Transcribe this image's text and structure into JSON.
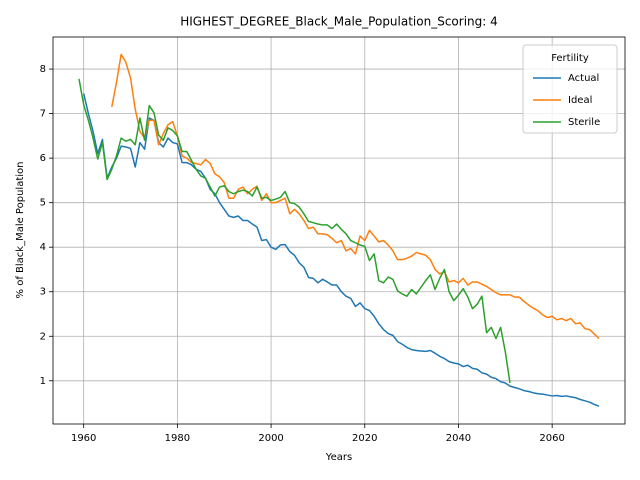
{
  "chart_data": {
    "type": "line",
    "title": "HIGHEST_DEGREE_Black_Male_Population_Scoring: 4",
    "x_label": "Years",
    "y_label": "% of Black_Male Population",
    "legend_title": "Fertility",
    "legend": "upper right",
    "grid": true,
    "x": [
      1959,
      1960,
      1961,
      1962,
      1963,
      1964,
      1965,
      1966,
      1967,
      1968,
      1969,
      1970,
      1971,
      1972,
      1973,
      1974,
      1975,
      1976,
      1977,
      1978,
      1979,
      1980,
      1981,
      1982,
      1983,
      1984,
      1985,
      1986,
      1987,
      1988,
      1989,
      1990,
      1991,
      1992,
      1993,
      1994,
      1995,
      1996,
      1997,
      1998,
      1999,
      2000,
      2001,
      2002,
      2003,
      2004,
      2005,
      2006,
      2007,
      2008,
      2009,
      2010,
      2011,
      2012,
      2013,
      2014,
      2015,
      2016,
      2017,
      2018,
      2019,
      2020,
      2021,
      2022,
      2023,
      2024,
      2025,
      2026,
      2027,
      2028,
      2029,
      2030,
      2031,
      2032,
      2033,
      2034,
      2035,
      2036,
      2037,
      2038,
      2039,
      2040,
      2041,
      2042,
      2043,
      2044,
      2045,
      2046,
      2047,
      2048,
      2049,
      2050,
      2051,
      2052,
      2053,
      2054,
      2055,
      2056,
      2057,
      2058,
      2059,
      2060,
      2061,
      2062,
      2063,
      2064,
      2065,
      2066,
      2067,
      2068,
      2069,
      2070
    ],
    "series": [
      {
        "name": "Actual",
        "color": "#1f77b4",
        "values": [
          null,
          7.45,
          7.0,
          6.6,
          6.1,
          6.42,
          5.55,
          5.8,
          6.0,
          6.27,
          6.25,
          6.22,
          5.8,
          6.35,
          6.2,
          6.9,
          6.85,
          6.35,
          6.25,
          6.45,
          6.35,
          6.32,
          5.9,
          5.9,
          5.85,
          5.75,
          5.7,
          5.55,
          5.3,
          5.2,
          5.0,
          4.85,
          4.7,
          4.67,
          4.7,
          4.6,
          4.6,
          4.52,
          4.45,
          4.15,
          4.17,
          4.0,
          3.95,
          4.05,
          4.06,
          3.9,
          3.82,
          3.65,
          3.55,
          3.32,
          3.3,
          3.2,
          3.28,
          3.22,
          3.15,
          3.15,
          3.0,
          2.9,
          2.85,
          2.67,
          2.75,
          2.62,
          2.58,
          2.45,
          2.28,
          2.15,
          2.06,
          2.02,
          1.88,
          1.82,
          1.75,
          1.7,
          1.68,
          1.67,
          1.66,
          1.68,
          1.62,
          1.55,
          1.5,
          1.43,
          1.4,
          1.38,
          1.32,
          1.35,
          1.28,
          1.26,
          1.18,
          1.15,
          1.08,
          1.05,
          0.98,
          0.95,
          0.88,
          0.85,
          0.82,
          0.78,
          0.76,
          0.73,
          0.71,
          0.7,
          0.68,
          0.66,
          0.67,
          0.65,
          0.66,
          0.64,
          0.62,
          0.58,
          0.55,
          0.52,
          0.47,
          0.43
        ]
      },
      {
        "name": "Ideal",
        "color": "#ff7f0e",
        "values": [
          null,
          null,
          null,
          null,
          null,
          null,
          null,
          7.15,
          7.7,
          8.33,
          8.15,
          7.8,
          7.1,
          6.6,
          6.45,
          6.85,
          6.85,
          6.3,
          6.55,
          6.75,
          6.82,
          6.5,
          6.05,
          6.0,
          5.9,
          5.88,
          5.85,
          5.97,
          5.88,
          5.65,
          5.58,
          5.45,
          5.1,
          5.1,
          5.3,
          5.35,
          5.2,
          5.3,
          5.37,
          5.05,
          5.2,
          5.0,
          5.0,
          5.05,
          5.1,
          4.75,
          4.85,
          4.75,
          4.6,
          4.42,
          4.45,
          4.3,
          4.3,
          4.28,
          4.2,
          4.1,
          4.15,
          3.92,
          3.97,
          3.85,
          4.25,
          4.15,
          4.38,
          4.25,
          4.12,
          4.15,
          4.05,
          3.92,
          3.72,
          3.72,
          3.75,
          3.8,
          3.88,
          3.85,
          3.82,
          3.72,
          3.5,
          3.4,
          3.45,
          3.22,
          3.25,
          3.2,
          3.3,
          3.15,
          3.22,
          3.22,
          3.17,
          3.12,
          3.05,
          2.98,
          2.93,
          2.93,
          2.93,
          2.88,
          2.88,
          2.78,
          2.7,
          2.63,
          2.57,
          2.48,
          2.42,
          2.45,
          2.37,
          2.4,
          2.35,
          2.4,
          2.28,
          2.3,
          2.17,
          2.15,
          2.05,
          1.95
        ]
      },
      {
        "name": "Sterile",
        "color": "#2ca02c",
        "values": [
          7.78,
          7.2,
          6.85,
          6.45,
          5.98,
          6.35,
          5.52,
          5.75,
          6.05,
          6.45,
          6.38,
          6.42,
          6.3,
          6.9,
          6.4,
          7.18,
          7.02,
          6.52,
          6.4,
          6.68,
          6.62,
          6.5,
          6.15,
          6.15,
          5.95,
          5.75,
          5.6,
          5.55,
          5.35,
          5.15,
          5.35,
          5.38,
          5.25,
          5.2,
          5.25,
          5.28,
          5.25,
          5.15,
          5.35,
          5.1,
          5.12,
          5.05,
          5.08,
          5.12,
          5.25,
          5.0,
          4.98,
          4.9,
          4.75,
          4.58,
          4.55,
          4.52,
          4.5,
          4.5,
          4.42,
          4.52,
          4.4,
          4.3,
          4.15,
          4.1,
          4.05,
          4.02,
          3.7,
          3.85,
          3.25,
          3.2,
          3.33,
          3.28,
          3.02,
          2.95,
          2.9,
          3.05,
          2.95,
          3.1,
          3.25,
          3.38,
          3.05,
          3.3,
          3.5,
          3.0,
          2.8,
          2.92,
          3.07,
          2.88,
          2.62,
          2.72,
          2.9,
          2.08,
          2.2,
          1.95,
          2.2,
          1.65,
          0.95,
          null,
          null,
          null,
          null,
          null,
          null,
          null,
          null,
          null,
          null,
          null,
          null,
          null,
          null,
          null,
          null,
          null,
          null,
          null
        ]
      }
    ],
    "xlim": [
      1953.45,
      2075.55
    ],
    "ylim": [
      0.03,
      8.72
    ],
    "xticks": [
      1960,
      1980,
      2000,
      2020,
      2040,
      2060
    ],
    "yticks": [
      1,
      2,
      3,
      4,
      5,
      6,
      7,
      8
    ]
  }
}
